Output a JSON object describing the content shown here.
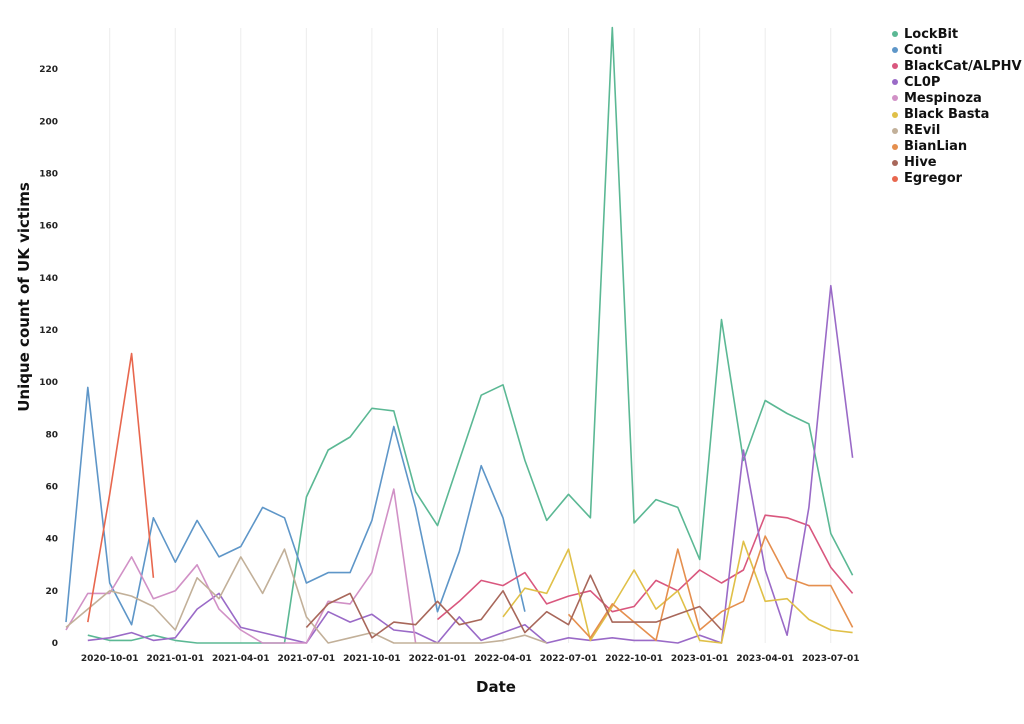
{
  "chart_data": {
    "type": "line",
    "xlabel": "Date",
    "ylabel": "Unique count of UK victims",
    "ylim": [
      0,
      235
    ],
    "yticks": [
      0,
      20,
      40,
      60,
      80,
      100,
      120,
      140,
      160,
      180,
      200,
      220
    ],
    "xtick_labels": [
      "2020-10-01",
      "2021-01-01",
      "2021-04-01",
      "2021-07-01",
      "2021-10-01",
      "2022-01-01",
      "2022-04-01",
      "2022-07-01",
      "2022-10-01",
      "2023-01-01",
      "2023-04-01",
      "2023-07-01"
    ],
    "grid": "vertical",
    "legend_position": "top-right",
    "months": [
      "2020-08",
      "2020-09",
      "2020-10",
      "2020-11",
      "2020-12",
      "2021-01",
      "2021-02",
      "2021-03",
      "2021-04",
      "2021-05",
      "2021-06",
      "2021-07",
      "2021-08",
      "2021-09",
      "2021-10",
      "2021-11",
      "2021-12",
      "2022-01",
      "2022-02",
      "2022-03",
      "2022-04",
      "2022-05",
      "2022-06",
      "2022-07",
      "2022-08",
      "2022-09",
      "2022-10",
      "2022-11",
      "2022-12",
      "2023-01",
      "2023-02",
      "2023-03",
      "2023-04",
      "2023-05",
      "2023-06",
      "2023-07",
      "2023-08"
    ],
    "series": [
      {
        "name": "LockBit",
        "color": "#5bb894",
        "values": [
          null,
          3,
          1,
          1,
          3,
          1,
          0,
          0,
          0,
          0,
          0,
          56,
          74,
          79,
          90,
          89,
          58,
          45,
          70,
          95,
          99,
          70,
          47,
          57,
          48,
          236,
          46,
          55,
          52,
          32,
          124,
          70,
          93,
          88,
          84,
          42,
          26
        ]
      },
      {
        "name": "Conti",
        "color": "#5e96c8",
        "values": [
          8,
          98,
          23,
          7,
          48,
          31,
          47,
          33,
          37,
          52,
          48,
          23,
          27,
          27,
          47,
          83,
          52,
          12,
          35,
          68,
          48,
          12,
          null,
          null,
          null,
          null,
          null,
          null,
          null,
          null,
          null,
          null,
          null,
          null,
          null,
          null,
          null
        ]
      },
      {
        "name": "BlackCat/ALPHV",
        "color": "#d9577e",
        "values": [
          null,
          null,
          null,
          null,
          null,
          null,
          null,
          null,
          null,
          null,
          null,
          null,
          null,
          null,
          null,
          null,
          null,
          9,
          16,
          24,
          22,
          27,
          15,
          18,
          20,
          12,
          14,
          24,
          20,
          28,
          23,
          28,
          49,
          48,
          45,
          29,
          19
        ]
      },
      {
        "name": "CL0P",
        "color": "#9a6ac7",
        "values": [
          null,
          1,
          2,
          4,
          1,
          2,
          13,
          19,
          6,
          4,
          2,
          0,
          12,
          8,
          11,
          5,
          4,
          0,
          10,
          1,
          4,
          7,
          0,
          2,
          1,
          2,
          1,
          1,
          0,
          3,
          0,
          74,
          28,
          3,
          52,
          137,
          71
        ]
      },
      {
        "name": "Mespinoza",
        "color": "#d191c6",
        "values": [
          5,
          19,
          19,
          33,
          17,
          20,
          30,
          13,
          5,
          0,
          0,
          0,
          16,
          15,
          27,
          59,
          0,
          null,
          null,
          null,
          null,
          null,
          null,
          null,
          null,
          null,
          null,
          null,
          null,
          null,
          null,
          null,
          null,
          null,
          null,
          null,
          null
        ]
      },
      {
        "name": "Black Basta",
        "color": "#e0c048",
        "values": [
          null,
          null,
          null,
          null,
          null,
          null,
          null,
          null,
          null,
          null,
          null,
          null,
          null,
          null,
          null,
          null,
          null,
          null,
          null,
          null,
          10,
          21,
          19,
          36,
          1,
          14,
          28,
          13,
          20,
          1,
          0,
          39,
          16,
          17,
          9,
          5,
          4
        ]
      },
      {
        "name": "REvil",
        "color": "#c2b099",
        "values": [
          6,
          13,
          20,
          18,
          14,
          5,
          25,
          17,
          33,
          19,
          36,
          10,
          0,
          2,
          4,
          0,
          0,
          0,
          0,
          0,
          1,
          3,
          0,
          null,
          null,
          null,
          null,
          null,
          null,
          null,
          null,
          null,
          null,
          null,
          null,
          null,
          null
        ]
      },
      {
        "name": "BianLian",
        "color": "#e58f4e",
        "values": [
          null,
          null,
          null,
          null,
          null,
          null,
          null,
          null,
          null,
          null,
          null,
          null,
          null,
          null,
          null,
          null,
          null,
          null,
          null,
          null,
          null,
          null,
          null,
          11,
          2,
          15,
          8,
          1,
          36,
          5,
          12,
          16,
          41,
          25,
          22,
          22,
          6
        ]
      },
      {
        "name": "Hive",
        "color": "#a8675a",
        "values": [
          null,
          null,
          null,
          null,
          null,
          null,
          null,
          null,
          null,
          null,
          null,
          6,
          15,
          19,
          2,
          8,
          7,
          16,
          7,
          9,
          20,
          4,
          12,
          7,
          26,
          8,
          8,
          8,
          11,
          14,
          5,
          null,
          null,
          null,
          null,
          null,
          null
        ]
      },
      {
        "name": "Egregor",
        "color": "#e8674e",
        "values": [
          null,
          8,
          57,
          111,
          25,
          null,
          null,
          null,
          null,
          null,
          null,
          null,
          null,
          null,
          null,
          null,
          null,
          null,
          null,
          null,
          null,
          null,
          null,
          null,
          null,
          null,
          null,
          null,
          null,
          null,
          null,
          null,
          null,
          null,
          null,
          null,
          null
        ]
      }
    ]
  }
}
